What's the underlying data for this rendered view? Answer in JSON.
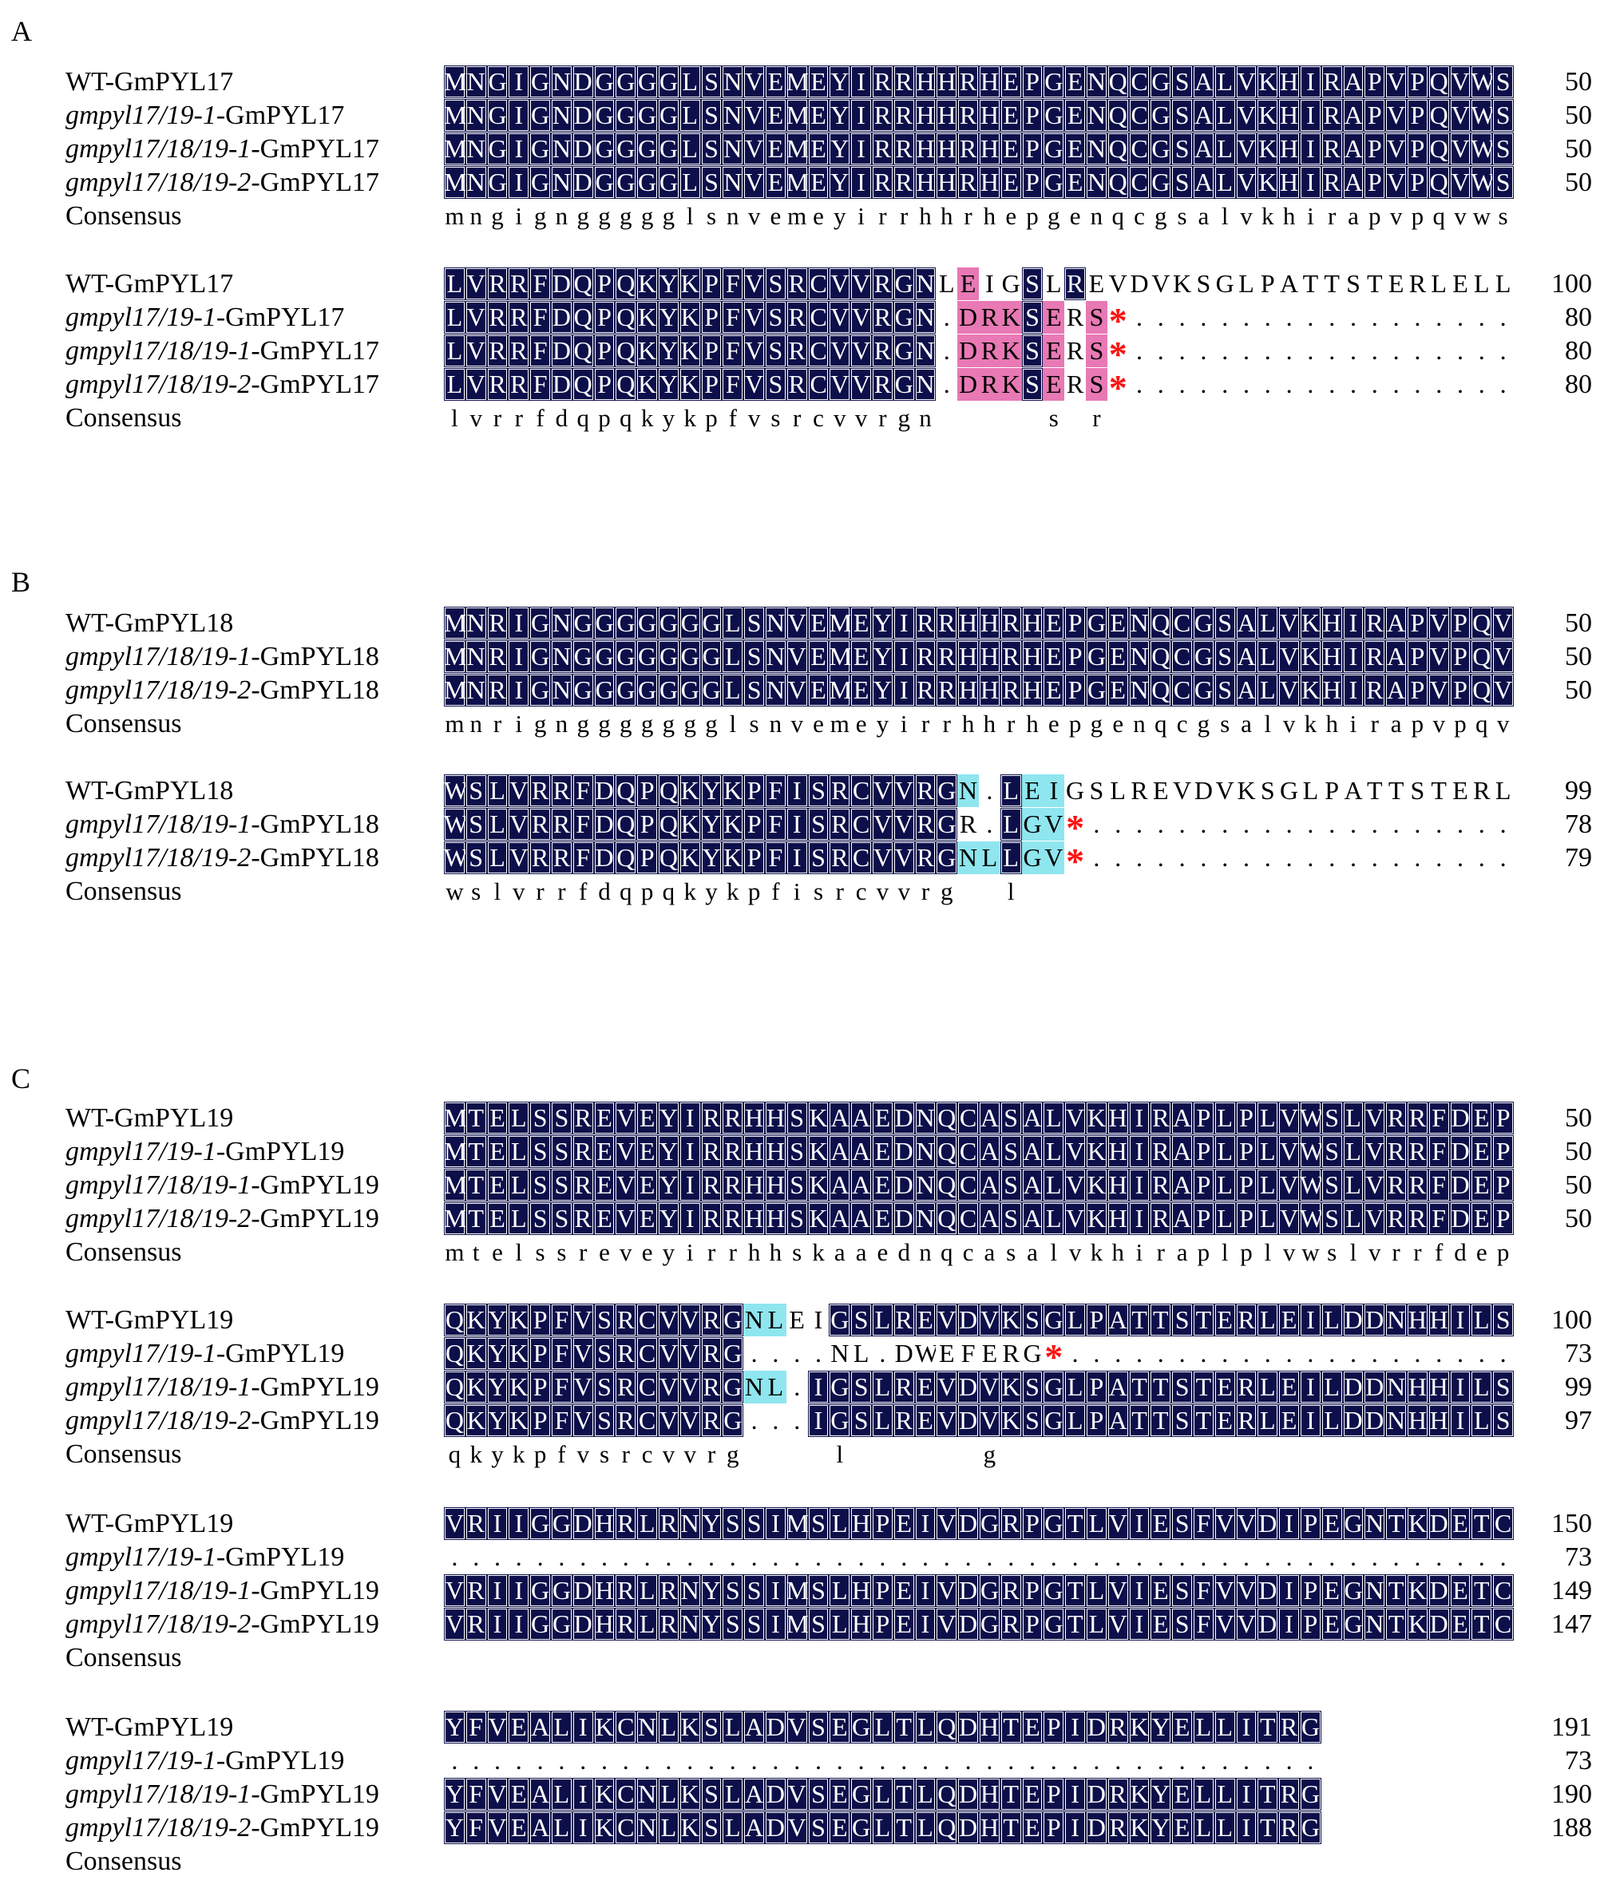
{
  "panels": [
    {
      "label": "A",
      "blocks": [
        {
          "rows": [
            {
              "name": "WT-GmPYL17",
              "italic_part": "",
              "seq": "MNGIGNDGGGGLSNVEMEYIRRHHRHEPGENQCGSALVKHIRAPVPQVWS",
              "num": "50",
              "class": "DDDD.DDDDDDDDDDDDDDDDDDDDDDDDDDDDDDDDDDDDDDDDDDDDDDDD"
            },
            {
              "name": "GmPYL17",
              "italic_part": "gmpyl17/19-1",
              "seq": "MNGIGNDGGGGLSNVEMEYIRRHHRHEPGENQCGSALVKHIRAPVPQVWS",
              "num": "50"
            },
            {
              "name": "GmPYL17",
              "italic_part": "gmpyl17/18/19-1",
              "seq": "MNGIGNDGGGGLSNVEMEYIRRHHRHEPGENQCGSALVKHIRAPVPQVWS",
              "num": "50"
            },
            {
              "name": "GmPYL17",
              "italic_part": "gmpyl17/18/19-2",
              "seq": "MNGIGNDGGGGLSNVEMEYIRRHHRHEPGENQCGSALVKHIRAPVPQVWS",
              "num": "50"
            }
          ],
          "consensus_label": "Consensus",
          "consensus": "mngignggggglsnvemeyirrhhrhepgenqcgsalvkhirapvpqvws"
        },
        {
          "rows": [
            {
              "name": "WT-GmPYL17",
              "italic_part": "",
              "seq": "LVRRFDQPQKYKPFVSRCVVRGNLEIGSLREVDVKSGLPATTSTERLELL",
              "num": "100"
            },
            {
              "name": "GmPYL17",
              "italic_part": "gmpyl17/19-1",
              "seq": "LVRRFDQPQKYKPFVSRCVVRGN.DRKSERS*",
              "num": "80"
            },
            {
              "name": "GmPYL17",
              "italic_part": "gmpyl17/18/19-1",
              "seq": "LVRRFDQPQKYKPFVSRCVVRGN.DRKSERS*",
              "num": "80"
            },
            {
              "name": "GmPYL17",
              "italic_part": "gmpyl17/18/19-2",
              "seq": "LVRRFDQPQKYKPFVSRCVVRGN.DRKSERS*",
              "num": "80"
            }
          ],
          "consensus_label": "Consensus",
          "consensus": "lvrrfdqpqkykpfvsrcvvrgn     s r"
        }
      ]
    },
    {
      "label": "B",
      "blocks": [
        {
          "rows": [
            {
              "name": "WT-GmPYL18",
              "italic_part": "",
              "seq": "MNRIGNGGGGGGGLSNVEMEYIRRHHRHEPGENQCGSALVKHIRAPVPQV",
              "num": "50"
            },
            {
              "name": "GmPYL18",
              "italic_part": "gmpyl17/18/19-1",
              "seq": "MNRIGNGGGGGGGLSNVEMEYIRRHHRHEPGENQCGSALVKHIRAPVPQV",
              "num": "50"
            },
            {
              "name": "GmPYL18",
              "italic_part": "gmpyl17/18/19-2",
              "seq": "MNRIGNGGGGGGGLSNVEMEYIRRHHRHEPGENQCGSALVKHIRAPVPQV",
              "num": "50"
            }
          ],
          "consensus_label": "Consensus",
          "consensus": "mnrignggggggglsnvemeyirrhhrhepgenqcgsalvkhirapvpqv"
        },
        {
          "rows": [
            {
              "name": "WT-GmPYL18",
              "italic_part": "",
              "seq": "WSLVRRFDQPQKYKPFISRCVVRGN.LEIGSLREVDVKSGLPATTSTERL",
              "num": "99"
            },
            {
              "name": "GmPYL18",
              "italic_part": "gmpyl17/18/19-1",
              "seq": "WSLVRRFDQPQKYKPFISRCVVRGR.LGV*",
              "num": "78"
            },
            {
              "name": "GmPYL18",
              "italic_part": "gmpyl17/18/19-2",
              "seq": "WSLVRRFDQPQKYKPFISRCVVRGNLLGV*",
              "num": "79"
            }
          ],
          "consensus_label": "Consensus",
          "consensus": "wslvrrfdqpqkykpfisrcvvrg  l"
        }
      ]
    },
    {
      "label": "C",
      "blocks": [
        {
          "rows": [
            {
              "name": "WT-GmPYL19",
              "italic_part": "",
              "seq": "MTELSSREVEYIRRHHSKAAEDNQCASALVKHIRAPLPLVWSLVRRFDEP",
              "num": "50"
            },
            {
              "name": "GmPYL19",
              "italic_part": "gmpyl17/19-1",
              "seq": "MTELSSREVEYIRRHHSKAAEDNQCASALVKHIRAPLPLVWSLVRRFDEP",
              "num": "50"
            },
            {
              "name": "GmPYL19",
              "italic_part": "gmpyl17/18/19-1",
              "seq": "MTELSSREVEYIRRHHSKAAEDNQCASALVKHIRAPLPLVWSLVRRFDEP",
              "num": "50"
            },
            {
              "name": "GmPYL19",
              "italic_part": "gmpyl17/18/19-2",
              "seq": "MTELSSREVEYIRRHHSKAAEDNQCASALVKHIRAPLPLVWSLVRRFDEP",
              "num": "50"
            }
          ],
          "consensus_label": "Consensus",
          "consensus": "mtelssreveyirrhhskaaednqcasalvkhiraplplvwslvrrfdep"
        },
        {
          "rows": [
            {
              "name": "WT-GmPYL19",
              "italic_part": "",
              "seq": "QKYKPFVSRCVVRGNLEIGSLREVDVKSGLPATTSTERLEILDDNHHILS",
              "num": "100"
            },
            {
              "name": "GmPYL19",
              "italic_part": "gmpyl17/19-1",
              "seq": "QKYKPFVSRCVVRG....NL.DWEFERG*",
              "num": "73"
            },
            {
              "name": "GmPYL19",
              "italic_part": "gmpyl17/18/19-1",
              "seq": "QKYKPFVSRCVVRGNL.IGSLREVDVKSGLPATTSTERLEILDDNHHILS",
              "num": "99"
            },
            {
              "name": "GmPYL19",
              "italic_part": "gmpyl17/18/19-2",
              "seq": "QKYKPFVSRCVVRG...IGSLREVDVKSGLPATTSTERLEILDDNHHILS",
              "num": "97"
            }
          ],
          "consensus_label": "Consensus",
          "consensus": "qkykpfvsrcvvrg    l      g"
        },
        {
          "rows": [
            {
              "name": "WT-GmPYL19",
              "italic_part": "",
              "seq": "VRIIGGDHRLRNYSSIMSLHPEIVDGRPGTLVIESFVVDIPEGNTKDETC",
              "num": "150"
            },
            {
              "name": "GmPYL19",
              "italic_part": "gmpyl17/19-1",
              "seq": "",
              "num": "73"
            },
            {
              "name": "GmPYL19",
              "italic_part": "gmpyl17/18/19-1",
              "seq": "VRIIGGDHRLRNYSSIMSLHPEIVDGRPGTLVIESFVVDIPEGNTKDETC",
              "num": "149"
            },
            {
              "name": "GmPYL19",
              "italic_part": "gmpyl17/18/19-2",
              "seq": "VRIIGGDHRLRNYSSIMSLHPEIVDGRPGTLVIESFVVDIPEGNTKDETC",
              "num": "147"
            }
          ],
          "consensus_label": "Consensus",
          "consensus": ""
        },
        {
          "rows": [
            {
              "name": "WT-GmPYL19",
              "italic_part": "",
              "seq": "YFVEALIKCNLKSLADVSEGLTLQDHTEPIDRKYELLITRG",
              "num": "191"
            },
            {
              "name": "GmPYL19",
              "italic_part": "gmpyl17/19-1",
              "seq": "",
              "num": "73"
            },
            {
              "name": "GmPYL19",
              "italic_part": "gmpyl17/18/19-1",
              "seq": "YFVEALIKCNLKSLADVSEGLTLQDHTEPIDRKYELLITRG",
              "num": "190"
            },
            {
              "name": "GmPYL19",
              "italic_part": "gmpyl17/18/19-2",
              "seq": "YFVEALIKCNLKSLADVSEGLTLQDHTEPIDRKYELLITRG",
              "num": "188"
            }
          ],
          "consensus_label": "Consensus",
          "consensus": ""
        }
      ]
    }
  ],
  "legend_colors": {
    "identical": "#0d0f4a",
    "changed_pyl17": "#e879b4",
    "changed_pyl18_19": "#8fe6ef",
    "stop_codon": "#ff1010"
  }
}
